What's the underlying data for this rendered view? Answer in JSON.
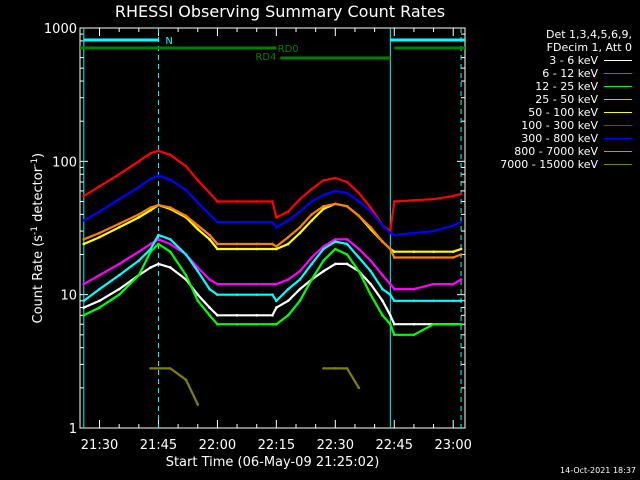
{
  "chart_data": {
    "type": "line",
    "title": "RHESSI Observing Summary Count Rates",
    "xlabel": "Start Time (06-May-09 21:25:02)",
    "ylabel_main": "Count Rate (s",
    "ylabel_sup1": "-1",
    "ylabel_mid": " detector",
    "ylabel_sup2": "-1",
    "ylabel_end": ")",
    "yscale": "log",
    "ylim": [
      1,
      1000
    ],
    "xlim": [
      "21:25:02",
      "23:03:00"
    ],
    "y_ticks": [
      "1",
      "10",
      "100",
      "1000"
    ],
    "x_ticks": [
      "21:30",
      "21:45",
      "22:00",
      "22:15",
      "22:30",
      "22:45",
      "23:00"
    ],
    "legend_header": [
      "Det 1,3,4,5,6,9,",
      "FDecim 1, Att 0"
    ],
    "footer_timestamp": "14-Oct-2021 18:37",
    "x": [
      "21:26",
      "21:30",
      "21:35",
      "21:40",
      "21:43",
      "21:45",
      "21:48",
      "21:52",
      "21:55",
      "21:58",
      "22:00",
      "22:05",
      "22:10",
      "22:14",
      "22:15",
      "22:18",
      "22:21",
      "22:24",
      "22:27",
      "22:30",
      "22:33",
      "22:36",
      "22:39",
      "22:42",
      "22:44",
      "22:45",
      "22:50",
      "22:55",
      "23:00",
      "23:02"
    ],
    "series": [
      {
        "name": "3 - 6 keV",
        "color": "#ffffff",
        "values": [
          8,
          9,
          11,
          14,
          16,
          17,
          16,
          13,
          10,
          8,
          7,
          7,
          7,
          7,
          8,
          9,
          11,
          13,
          15,
          17,
          17,
          15,
          12,
          9,
          7,
          6,
          6,
          6,
          6,
          6
        ]
      },
      {
        "name": "6 - 12 keV",
        "color": "#ff00ff",
        "values": [
          12,
          14,
          17,
          21,
          24,
          26,
          24,
          20,
          16,
          13,
          12,
          12,
          12,
          12,
          12,
          13,
          15,
          19,
          23,
          26,
          26,
          22,
          18,
          14,
          12,
          11,
          11,
          12,
          12,
          13
        ]
      },
      {
        "name": "12 - 25 keV",
        "color": "#00ff00",
        "values": [
          7,
          8,
          10,
          14,
          21,
          24,
          21,
          14,
          9,
          7,
          6,
          6,
          6,
          6,
          6,
          7,
          9,
          13,
          18,
          22,
          20,
          15,
          10,
          7,
          6,
          5,
          5,
          6,
          6,
          6
        ]
      },
      {
        "name": "25 - 50 keV",
        "color": "#00ffff",
        "values": [
          9,
          11,
          14,
          18,
          22,
          28,
          26,
          20,
          15,
          11,
          10,
          10,
          10,
          10,
          9,
          11,
          13,
          17,
          22,
          25,
          24,
          19,
          15,
          11,
          10,
          9,
          9,
          9,
          9,
          9
        ]
      },
      {
        "name": "50 - 100 keV",
        "color": "#ffff00",
        "values": [
          24,
          27,
          32,
          38,
          43,
          47,
          44,
          38,
          31,
          26,
          22,
          22,
          22,
          22,
          22,
          24,
          29,
          36,
          44,
          48,
          46,
          39,
          31,
          25,
          22,
          21,
          21,
          21,
          21,
          22
        ]
      },
      {
        "name": "100 - 300 keV",
        "color": "#ff0000",
        "values": [
          55,
          65,
          80,
          100,
          115,
          120,
          112,
          92,
          72,
          58,
          50,
          50,
          50,
          50,
          38,
          42,
          52,
          62,
          72,
          75,
          70,
          58,
          45,
          33,
          30,
          50,
          51,
          52,
          55,
          57
        ]
      },
      {
        "name": "300 - 800 keV",
        "color": "#0000ff",
        "values": [
          36,
          42,
          52,
          64,
          74,
          78,
          73,
          61,
          49,
          40,
          35,
          35,
          35,
          35,
          32,
          36,
          42,
          50,
          56,
          60,
          58,
          50,
          42,
          33,
          29,
          28,
          29,
          30,
          33,
          35
        ]
      },
      {
        "name": "800 - 7000 keV",
        "color": "#ff8000",
        "values": [
          26,
          29,
          34,
          40,
          45,
          47,
          45,
          39,
          33,
          28,
          24,
          24,
          24,
          24,
          23,
          27,
          32,
          40,
          46,
          48,
          46,
          39,
          32,
          25,
          22,
          19,
          19,
          19,
          19,
          20
        ]
      },
      {
        "name": "7000 - 15000 keV",
        "color": "#808000",
        "values": [
          null,
          null,
          null,
          null,
          2.8,
          2.8,
          2.8,
          2.3,
          1.5,
          null,
          null,
          null,
          null,
          null,
          null,
          null,
          null,
          null,
          2.8,
          2.8,
          2.8,
          2.0,
          null,
          null,
          null,
          null,
          null,
          null,
          null,
          null
        ]
      }
    ],
    "annotations": {
      "n_label": "N",
      "rd0_label": "RD0",
      "rd4_label": "RD4"
    }
  }
}
